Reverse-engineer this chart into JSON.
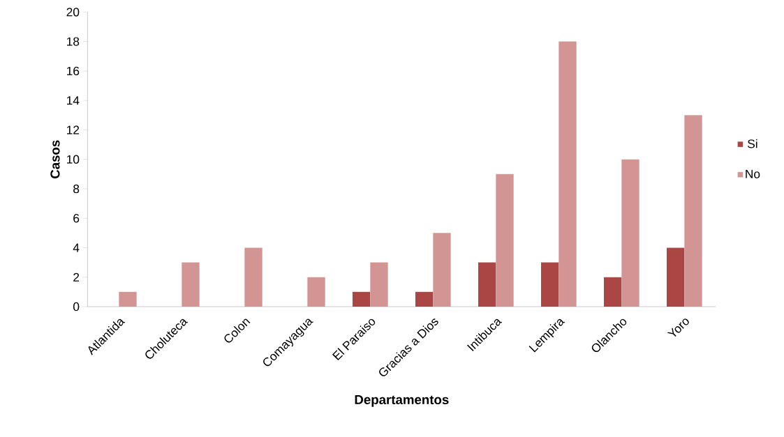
{
  "chart_data": {
    "type": "bar",
    "xlabel": "Departamentos",
    "ylabel": "Casos",
    "categories": [
      "Atlantida",
      "Choluteca",
      "Colon",
      "Comayagua",
      "El Paraiso",
      "Gracias a Dios",
      "Intibuca",
      "Lempira",
      "Olancho",
      "Yoro"
    ],
    "series": [
      {
        "name": "Si",
        "color": "#aa4643",
        "values": [
          0,
          0,
          0,
          0,
          1,
          1,
          3,
          3,
          2,
          4
        ]
      },
      {
        "name": "No",
        "color": "#d39494",
        "values": [
          1,
          3,
          4,
          2,
          3,
          5,
          9,
          18,
          10,
          13
        ]
      }
    ],
    "ylim": [
      0,
      20
    ],
    "yticks": [
      0,
      2,
      4,
      6,
      8,
      10,
      12,
      14,
      16,
      18,
      20
    ],
    "grid": false,
    "legend": "right"
  }
}
